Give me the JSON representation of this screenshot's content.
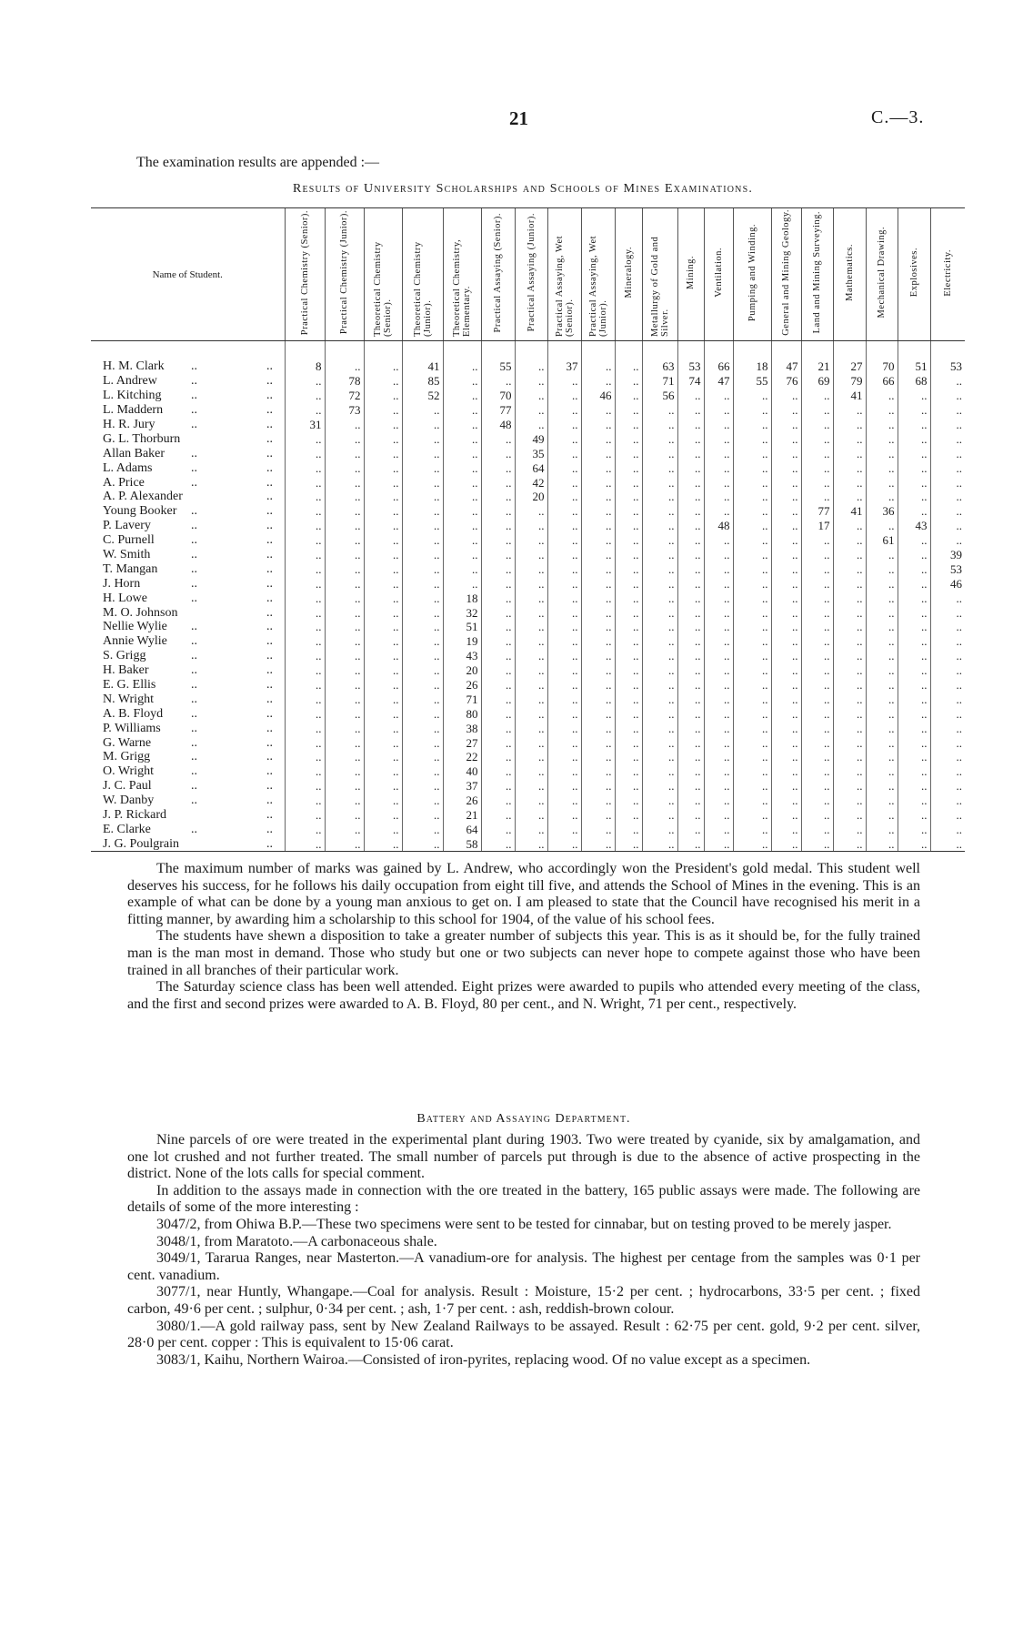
{
  "page_number": "21",
  "doc_reference": "C.—3.",
  "intro": "The examination results are appended :—",
  "table_title": "Results of University Scholarships and Schools of Mines Examinations.",
  "blank_mark": "..",
  "table": {
    "name_header": "Name of Student.",
    "subjects": [
      "Practical Chemistry (Senior).",
      "Practical Chemistry (Junior).",
      "Theoretical Chemistry (Senior).",
      "Theoretical Chemistry (Junior).",
      "Theoretical Chemistry, Elementary.",
      "Practical Assaying (Senior).",
      "Practical Assaying (Junior).",
      "Practical Assaying, Wet (Senior).",
      "Practical Assaying, Wet (Junior).",
      "Mineralogy.",
      "Metallurgy of Gold and Silver.",
      "Mining.",
      "Ventilation.",
      "Pumping and Winding.",
      "General and Mining Geology.",
      "Land and Mining Surveying.",
      "Mathematics.",
      "Mechanical Drawing.",
      "Explosives.",
      "Electricity."
    ],
    "rows": [
      {
        "name": "H. M. Clark",
        "marks": [
          "8",
          "",
          "",
          "41",
          "",
          "55",
          "",
          "37",
          "",
          "",
          "63",
          "53",
          "66",
          "18",
          "47",
          "21",
          "27",
          "70",
          "51",
          "53"
        ]
      },
      {
        "name": "L. Andrew",
        "marks": [
          "",
          "78",
          "",
          "85",
          "",
          "",
          "",
          "",
          "",
          "",
          "71",
          "74",
          "47",
          "55",
          "76",
          "69",
          "79",
          "66",
          "68",
          ""
        ]
      },
      {
        "name": "L. Kitching",
        "marks": [
          "",
          "72",
          "",
          "52",
          "",
          "70",
          "",
          "",
          "46",
          "",
          "56",
          "",
          "",
          "",
          "",
          "",
          "41",
          "",
          "",
          ""
        ]
      },
      {
        "name": "L. Maddern",
        "marks": [
          "",
          "73",
          "",
          "",
          "",
          "77",
          "",
          "",
          "",
          "",
          "",
          "",
          "",
          "",
          "",
          "",
          "",
          "",
          "",
          ""
        ]
      },
      {
        "name": "H. R. Jury",
        "marks": [
          "31",
          "",
          "",
          "",
          "",
          "48",
          "",
          "",
          "",
          "",
          "",
          "",
          "",
          "",
          "",
          "",
          "",
          "",
          "",
          ""
        ]
      },
      {
        "name": "G. L. Thorburn",
        "marks": [
          "",
          "",
          "",
          "",
          "",
          "",
          "49",
          "",
          "",
          "",
          "",
          "",
          "",
          "",
          "",
          "",
          "",
          "",
          "",
          ""
        ]
      },
      {
        "name": "Allan Baker",
        "marks": [
          "",
          "",
          "",
          "",
          "",
          "",
          "35",
          "",
          "",
          "",
          "",
          "",
          "",
          "",
          "",
          "",
          "",
          "",
          "",
          ""
        ]
      },
      {
        "name": "L. Adams",
        "marks": [
          "",
          "",
          "",
          "",
          "",
          "",
          "64",
          "",
          "",
          "",
          "",
          "",
          "",
          "",
          "",
          "",
          "",
          "",
          "",
          ""
        ]
      },
      {
        "name": "A. Price",
        "marks": [
          "",
          "",
          "",
          "",
          "",
          "",
          "42",
          "",
          "",
          "",
          "",
          "",
          "",
          "",
          "",
          "",
          "",
          "",
          "",
          ""
        ]
      },
      {
        "name": "A. P. Alexander",
        "marks": [
          "",
          "",
          "",
          "",
          "",
          "",
          "20",
          "",
          "",
          "",
          "",
          "",
          "",
          "",
          "",
          "",
          "",
          "",
          "",
          ""
        ]
      },
      {
        "name": "Young Booker",
        "marks": [
          "",
          "",
          "",
          "",
          "",
          "",
          "",
          "",
          "",
          "",
          "",
          "",
          "",
          "",
          "",
          "77",
          "41",
          "36",
          "",
          ""
        ]
      },
      {
        "name": "P. Lavery",
        "marks": [
          "",
          "",
          "",
          "",
          "",
          "",
          "",
          "",
          "",
          "",
          "",
          "",
          "48",
          "",
          "",
          "17",
          "",
          "",
          "43",
          ""
        ]
      },
      {
        "name": "C. Purnell",
        "marks": [
          "",
          "",
          "",
          "",
          "",
          "",
          "",
          "",
          "",
          "",
          "",
          "",
          "",
          "",
          "",
          "",
          "",
          "61",
          "",
          ""
        ]
      },
      {
        "name": "W. Smith",
        "marks": [
          "",
          "",
          "",
          "",
          "",
          "",
          "",
          "",
          "",
          "",
          "",
          "",
          "",
          "",
          "",
          "",
          "",
          "",
          "",
          "39"
        ]
      },
      {
        "name": "T. Mangan",
        "marks": [
          "",
          "",
          "",
          "",
          "",
          "",
          "",
          "",
          "",
          "",
          "",
          "",
          "",
          "",
          "",
          "",
          "",
          "",
          "",
          "53"
        ]
      },
      {
        "name": "J. Horn",
        "marks": [
          "",
          "",
          "",
          "",
          "",
          "",
          "",
          "",
          "",
          "",
          "",
          "",
          "",
          "",
          "",
          "",
          "",
          "",
          "",
          "46"
        ]
      },
      {
        "name": "H. Lowe",
        "marks": [
          "",
          "",
          "",
          "",
          "18",
          "",
          "",
          "",
          "",
          "",
          "",
          "",
          "",
          "",
          "",
          "",
          "",
          "",
          "",
          ""
        ]
      },
      {
        "name": "M. O. Johnson",
        "marks": [
          "",
          "",
          "",
          "",
          "32",
          "",
          "",
          "",
          "",
          "",
          "",
          "",
          "",
          "",
          "",
          "",
          "",
          "",
          "",
          ""
        ]
      },
      {
        "name": "Nellie Wylie",
        "marks": [
          "",
          "",
          "",
          "",
          "51",
          "",
          "",
          "",
          "",
          "",
          "",
          "",
          "",
          "",
          "",
          "",
          "",
          "",
          "",
          ""
        ]
      },
      {
        "name": "Annie Wylie",
        "marks": [
          "",
          "",
          "",
          "",
          "19",
          "",
          "",
          "",
          "",
          "",
          "",
          "",
          "",
          "",
          "",
          "",
          "",
          "",
          "",
          ""
        ]
      },
      {
        "name": "S. Grigg",
        "marks": [
          "",
          "",
          "",
          "",
          "43",
          "",
          "",
          "",
          "",
          "",
          "",
          "",
          "",
          "",
          "",
          "",
          "",
          "",
          "",
          ""
        ]
      },
      {
        "name": "H. Baker",
        "marks": [
          "",
          "",
          "",
          "",
          "20",
          "",
          "",
          "",
          "",
          "",
          "",
          "",
          "",
          "",
          "",
          "",
          "",
          "",
          "",
          ""
        ]
      },
      {
        "name": "E. G. Ellis",
        "marks": [
          "",
          "",
          "",
          "",
          "26",
          "",
          "",
          "",
          "",
          "",
          "",
          "",
          "",
          "",
          "",
          "",
          "",
          "",
          "",
          ""
        ]
      },
      {
        "name": "N. Wright",
        "marks": [
          "",
          "",
          "",
          "",
          "71",
          "",
          "",
          "",
          "",
          "",
          "",
          "",
          "",
          "",
          "",
          "",
          "",
          "",
          "",
          ""
        ]
      },
      {
        "name": "A. B. Floyd",
        "marks": [
          "",
          "",
          "",
          "",
          "80",
          "",
          "",
          "",
          "",
          "",
          "",
          "",
          "",
          "",
          "",
          "",
          "",
          "",
          "",
          ""
        ]
      },
      {
        "name": "P. Williams",
        "marks": [
          "",
          "",
          "",
          "",
          "38",
          "",
          "",
          "",
          "",
          "",
          "",
          "",
          "",
          "",
          "",
          "",
          "",
          "",
          "",
          ""
        ]
      },
      {
        "name": "G. Warne",
        "marks": [
          "",
          "",
          "",
          "",
          "27",
          "",
          "",
          "",
          "",
          "",
          "",
          "",
          "",
          "",
          "",
          "",
          "",
          "",
          "",
          ""
        ]
      },
      {
        "name": "M. Grigg",
        "marks": [
          "",
          "",
          "",
          "",
          "22",
          "",
          "",
          "",
          "",
          "",
          "",
          "",
          "",
          "",
          "",
          "",
          "",
          "",
          "",
          ""
        ]
      },
      {
        "name": "O. Wright",
        "marks": [
          "",
          "",
          "",
          "",
          "40",
          "",
          "",
          "",
          "",
          "",
          "",
          "",
          "",
          "",
          "",
          "",
          "",
          "",
          "",
          ""
        ]
      },
      {
        "name": "J. C. Paul",
        "marks": [
          "",
          "",
          "",
          "",
          "37",
          "",
          "",
          "",
          "",
          "",
          "",
          "",
          "",
          "",
          "",
          "",
          "",
          "",
          "",
          ""
        ]
      },
      {
        "name": "W. Danby",
        "marks": [
          "",
          "",
          "",
          "",
          "26",
          "",
          "",
          "",
          "",
          "",
          "",
          "",
          "",
          "",
          "",
          "",
          "",
          "",
          "",
          ""
        ]
      },
      {
        "name": "J. P. Rickard",
        "marks": [
          "",
          "",
          "",
          "",
          "21",
          "",
          "",
          "",
          "",
          "",
          "",
          "",
          "",
          "",
          "",
          "",
          "",
          "",
          "",
          ""
        ]
      },
      {
        "name": "E. Clarke",
        "marks": [
          "",
          "",
          "",
          "",
          "64",
          "",
          "",
          "",
          "",
          "",
          "",
          "",
          "",
          "",
          "",
          "",
          "",
          "",
          "",
          ""
        ]
      },
      {
        "name": "J. G. Poulgrain",
        "marks": [
          "",
          "",
          "",
          "",
          "58",
          "",
          "",
          "",
          "",
          "",
          "",
          "",
          "",
          "",
          "",
          "",
          "",
          "",
          "",
          ""
        ]
      }
    ]
  },
  "paragraphs_1": [
    "The maximum number of marks was gained by L. Andrew, who accordingly won the President's gold medal. This student well deserves his success, for he follows his daily occupation from eight till five, and attends the School of Mines in the evening. This is an example of what can be done by a young man anxious to get on. I am pleased to state that the Council have recognised his merit in a fitting manner, by awarding him a scholarship to this school for 1904, of the value of his school fees.",
    "The students have shewn a disposition to take a greater number of subjects this year. This is as it should be, for the fully trained man is the man most in demand. Those who study but one or two subjects can never hope to compete against those who have been trained in all branches of their particular work.",
    "The Saturday science class has been well attended. Eight prizes were awarded to pupils who attended every meeting of the class, and the first and second prizes were awarded to A. B. Floyd, 80 per cent., and N. Wright, 71 per cent., respectively."
  ],
  "heading_2": "Battery and Assaying Department.",
  "paragraphs_2": [
    "Nine parcels of ore were treated in the experimental plant during 1903. Two were treated by cyanide, six by amalgamation, and one lot crushed and not further treated. The small number of parcels put through is due to the absence of active prospecting in the district. None of the lots calls for special comment.",
    "In addition to the assays made in connection with the ore treated in the battery, 165 public assays were made. The following are details of some of the more interesting :",
    "3047/2, from Ohiwa B.P.—These two specimens were sent to be tested for cinnabar, but on testing proved to be merely jasper.",
    "3048/1, from Maratoto.—A carbonaceous shale.",
    "3049/1, Tararua Ranges, near Masterton.—A vanadium-ore for analysis. The highest per centage from the samples was 0·1 per cent. vanadium.",
    "3077/1, near Huntly, Whangape.—Coal for analysis. Result : Moisture, 15·2 per cent. ; hydrocarbons, 33·5 per cent. ; fixed carbon, 49·6 per cent. ; sulphur, 0·34 per cent. ; ash, 1·7 per cent. : ash, reddish-brown colour.",
    "3080/1.—A gold railway pass, sent by New Zealand Railways to be assayed. Result : 62·75 per cent. gold, 9·2 per cent. silver, 28·0 per cent. copper : This is equivalent to 15·06 carat.",
    "3083/1, Kaihu, Northern Wairoa.—Consisted of iron-pyrites, replacing wood. Of no value except as a specimen."
  ]
}
